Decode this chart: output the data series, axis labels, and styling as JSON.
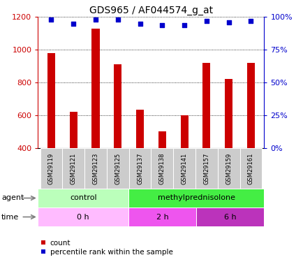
{
  "title": "GDS965 / AF044574_g_at",
  "samples": [
    "GSM29119",
    "GSM29121",
    "GSM29123",
    "GSM29125",
    "GSM29137",
    "GSM29138",
    "GSM29141",
    "GSM29157",
    "GSM29159",
    "GSM29161"
  ],
  "counts": [
    980,
    620,
    1130,
    910,
    635,
    500,
    600,
    920,
    820,
    920
  ],
  "percentile_ranks": [
    98,
    95,
    98,
    98,
    95,
    94,
    94,
    97,
    96,
    97
  ],
  "ylim_left": [
    400,
    1200
  ],
  "ylim_right": [
    0,
    100
  ],
  "yticks_left": [
    400,
    600,
    800,
    1000,
    1200
  ],
  "yticks_right": [
    0,
    25,
    50,
    75,
    100
  ],
  "bar_color": "#cc0000",
  "dot_color": "#0000cc",
  "agent_groups": [
    {
      "label": "control",
      "start": 0,
      "end": 4,
      "color": "#bbffbb"
    },
    {
      "label": "methylprednisolone",
      "start": 4,
      "end": 10,
      "color": "#44ee44"
    }
  ],
  "time_groups": [
    {
      "label": "0 h",
      "start": 0,
      "end": 4,
      "color": "#ffbbff"
    },
    {
      "label": "2 h",
      "start": 4,
      "end": 7,
      "color": "#ee55ee"
    },
    {
      "label": "6 h",
      "start": 7,
      "end": 10,
      "color": "#bb33bb"
    }
  ],
  "agent_label": "agent",
  "time_label": "time",
  "legend_count_label": "count",
  "legend_pct_label": "percentile rank within the sample",
  "bar_width": 0.35,
  "axis_color_left": "#cc0000",
  "axis_color_right": "#0000cc",
  "title_fontsize": 10,
  "tick_fontsize": 8,
  "label_fontsize": 8,
  "sample_fontsize": 6
}
